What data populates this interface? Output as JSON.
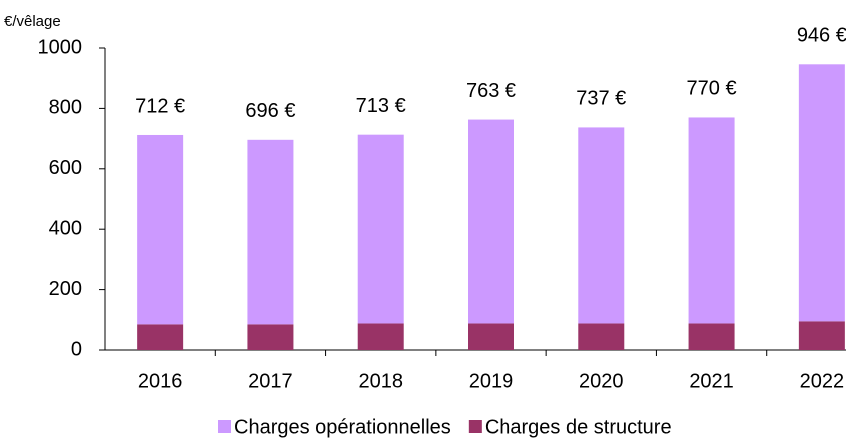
{
  "chart_data": {
    "type": "stacked_bar",
    "y_label": "€/vêlage",
    "categories": [
      "2016",
      "2017",
      "2018",
      "2019",
      "2020",
      "2021",
      "2022"
    ],
    "series": [
      {
        "name": "Charges opérationnelles",
        "color": "#cc99ff",
        "values": [
          627,
          611,
          625,
          675,
          649,
          682,
          851
        ]
      },
      {
        "name": "Charges de structure",
        "color": "#993366",
        "values": [
          85,
          85,
          88,
          88,
          88,
          88,
          95
        ]
      }
    ],
    "totals": [
      712,
      696,
      713,
      763,
      737,
      770,
      946
    ],
    "total_labels": [
      "712 €",
      "696 €",
      "713 €",
      "763 €",
      "737 €",
      "770 €",
      "946 €"
    ],
    "ylim": [
      0,
      1000
    ],
    "yticks": [
      0,
      200,
      400,
      600,
      800,
      1000
    ],
    "legend": "bottom"
  }
}
